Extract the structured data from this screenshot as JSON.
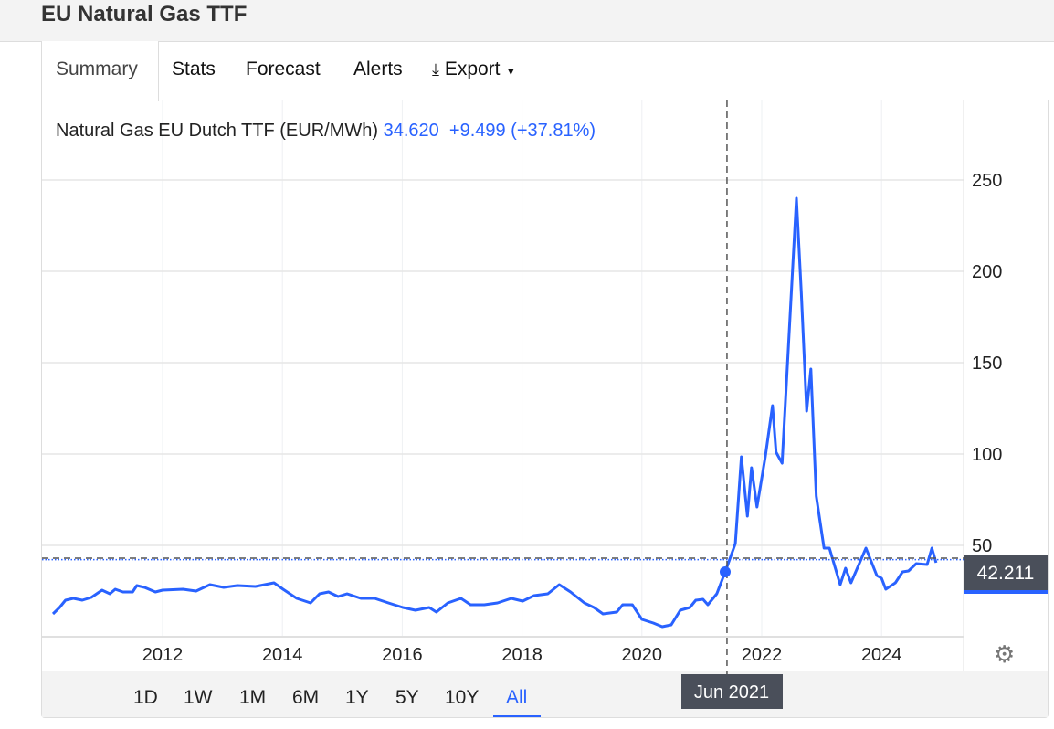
{
  "header": {
    "title": "EU Natural Gas TTF"
  },
  "tabs": [
    {
      "label": "Summary"
    },
    {
      "label": "Stats"
    },
    {
      "label": "Forecast"
    },
    {
      "label": "Alerts"
    },
    {
      "label": "Export"
    }
  ],
  "legend": {
    "name": "Natural Gas EU Dutch TTF (EUR/MWh)",
    "value": "34.620",
    "change": "+9.499 (+37.81%)"
  },
  "crosshair": {
    "date_label": "Jun 2021",
    "price_label": "42.211"
  },
  "ranges": [
    {
      "label": "1D"
    },
    {
      "label": "1W"
    },
    {
      "label": "1M"
    },
    {
      "label": "6M"
    },
    {
      "label": "1Y"
    },
    {
      "label": "5Y"
    },
    {
      "label": "10Y"
    },
    {
      "label": "All"
    }
  ],
  "colors": {
    "line": "#2962ff",
    "tag": "#4a4f5a"
  },
  "chart_data": {
    "type": "line",
    "title": "Natural Gas EU Dutch TTF (EUR/MWh)",
    "xlabel": "",
    "ylabel": "",
    "xlim": [
      2010.0,
      2025.6
    ],
    "ylim": [
      0,
      290
    ],
    "xticks": [
      {
        "v": 2012,
        "label": "2012"
      },
      {
        "v": 2014,
        "label": "2014"
      },
      {
        "v": 2016,
        "label": "2016"
      },
      {
        "v": 2018,
        "label": "2018"
      },
      {
        "v": 2020,
        "label": "2020"
      },
      {
        "v": 2022,
        "label": "2022"
      },
      {
        "v": 2024,
        "label": "2024"
      }
    ],
    "yticks": [
      {
        "v": 50,
        "label": "50"
      },
      {
        "v": 100,
        "label": "100"
      },
      {
        "v": 150,
        "label": "150"
      },
      {
        "v": 200,
        "label": "200"
      },
      {
        "v": 250,
        "label": "250"
      }
    ],
    "crosshair_x": 2021.42,
    "crosshair_y": 43,
    "last_value": 42.211,
    "marker": {
      "x": 2021.39,
      "y": 35.5
    },
    "x": [
      2010.17,
      2010.28,
      2010.38,
      2010.51,
      2010.66,
      2010.81,
      2010.99,
      2011.12,
      2011.21,
      2011.34,
      2011.5,
      2011.57,
      2011.7,
      2011.88,
      2012.0,
      2012.34,
      2012.56,
      2012.79,
      2013.02,
      2013.25,
      2013.55,
      2013.86,
      2014.01,
      2014.24,
      2014.47,
      2014.62,
      2014.77,
      2014.93,
      2015.08,
      2015.31,
      2015.54,
      2015.77,
      2016.01,
      2016.22,
      2016.45,
      2016.57,
      2016.76,
      2016.98,
      2017.14,
      2017.37,
      2017.59,
      2017.82,
      2018.01,
      2018.2,
      2018.43,
      2018.62,
      2018.81,
      2019.04,
      2019.2,
      2019.35,
      2019.58,
      2019.68,
      2019.84,
      2020.0,
      2020.19,
      2020.34,
      2020.49,
      2020.64,
      2020.8,
      2020.9,
      2021.02,
      2021.1,
      2021.25,
      2021.39,
      2021.56,
      2021.66,
      2021.76,
      2021.83,
      2021.92,
      2022.06,
      2022.18,
      2022.24,
      2022.34,
      2022.58,
      2022.66,
      2022.75,
      2022.82,
      2022.91,
      2023.04,
      2023.13,
      2023.31,
      2023.4,
      2023.49,
      2023.74,
      2023.92,
      2024.0,
      2024.07,
      2024.23,
      2024.35,
      2024.45,
      2024.58,
      2024.76,
      2024.84,
      2024.91
    ],
    "y": [
      12.5,
      16,
      20,
      21,
      20,
      21.5,
      25.5,
      23.5,
      26,
      24.5,
      24.5,
      28,
      27,
      24.5,
      25.5,
      26,
      25,
      28.5,
      27,
      28,
      27.5,
      29.5,
      26,
      21,
      18.5,
      23.5,
      24.5,
      22,
      23.5,
      21,
      21,
      18.5,
      16,
      14.5,
      16,
      13.5,
      18.5,
      21,
      17.5,
      17.5,
      18.5,
      21,
      19.5,
      22.5,
      23.5,
      28.5,
      24.5,
      18.5,
      16,
      12.5,
      13.5,
      17.5,
      17.5,
      9.5,
      7.5,
      5.5,
      6.5,
      14.5,
      16,
      20,
      20.5,
      17.5,
      23.5,
      35.5,
      51,
      98.5,
      66,
      92.5,
      71,
      98.5,
      126.5,
      101,
      95,
      240,
      188.5,
      123.5,
      146.5,
      77,
      48.5,
      48.5,
      28.5,
      37.5,
      29.5,
      48.5,
      33.5,
      32,
      26,
      29.5,
      35.5,
      36,
      40,
      39.5,
      48.5,
      40.5
    ]
  }
}
